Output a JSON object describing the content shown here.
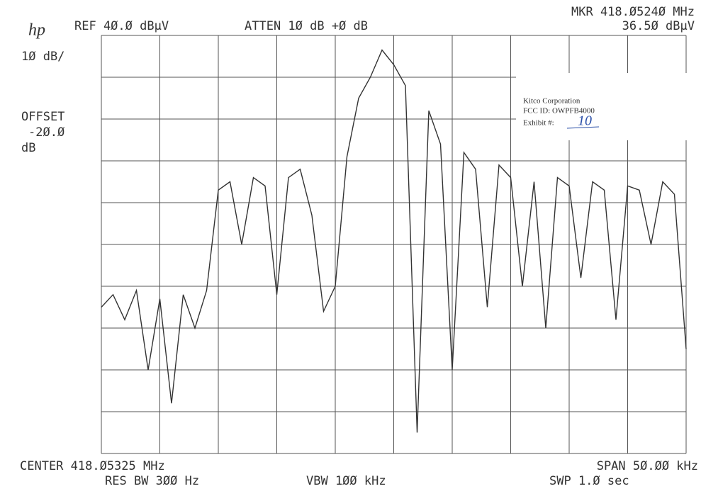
{
  "chart_data": {
    "type": "line",
    "header": {
      "logo": "hp",
      "ref": "REF 4Ø.Ø dBµV",
      "atten": "ATTEN 1Ø dB +Ø dB",
      "marker_freq": "MKR 418.Ø524Ø MHz",
      "marker_level": "36.5Ø dBµV"
    },
    "side": {
      "scale": "1Ø dB/",
      "offset_label": "OFFSET",
      "offset_value": "-2Ø.Ø",
      "offset_unit": "dB"
    },
    "footer": {
      "center": "CENTER 418.Ø5325 MHz",
      "span": "SPAN 5Ø.ØØ kHz",
      "rbw": "RES BW 3ØØ Hz",
      "vbw": "VBW 1ØØ kHz",
      "sweep": "SWP 1.Ø  sec"
    },
    "stamp": {
      "company": "Kitco Corporation",
      "fcc_id": "FCC ID:  OWPFB4000",
      "exhibit_label": "Exhibit #:",
      "exhibit_number": "10"
    },
    "x": [
      418.02825,
      418.02925,
      418.03025,
      418.03125,
      418.03225,
      418.03325,
      418.03425,
      418.03525,
      418.03625,
      418.03725,
      418.03825,
      418.03925,
      418.04025,
      418.04125,
      418.04225,
      418.04325,
      418.04425,
      418.04525,
      418.04625,
      418.04725,
      418.04825,
      418.04925,
      418.05025,
      418.05125,
      418.05225,
      418.05325,
      418.05425,
      418.05525,
      418.05625,
      418.05725,
      418.05825,
      418.05925,
      418.06025,
      418.06125,
      418.06225,
      418.06325,
      418.06425,
      418.06525,
      418.06625,
      418.06725,
      418.06825,
      418.06925,
      418.07025,
      418.07125,
      418.07225,
      418.07325,
      418.07425,
      418.07525,
      418.07625,
      418.07725,
      418.07825
    ],
    "series": [
      {
        "name": "trace",
        "color": "#333333",
        "values": [
          -25,
          -22,
          -28,
          -21,
          -40,
          -23,
          -48,
          -22,
          -30,
          -21,
          3,
          5,
          -10,
          6,
          4,
          -22,
          6,
          8,
          -3,
          -26,
          -20,
          11,
          25,
          30,
          36.5,
          33,
          28,
          -55,
          22,
          14,
          -40,
          12,
          8,
          -25,
          9,
          6,
          -20,
          5,
          -30,
          6,
          4,
          -18,
          5,
          3,
          -28,
          4,
          3,
          -10,
          5,
          2,
          -35
        ]
      }
    ],
    "xlim": [
      418.02825,
      418.07825
    ],
    "xticks": [
      418.02825,
      418.03325,
      418.03825,
      418.04325,
      418.04825,
      418.05325,
      418.05825,
      418.06325,
      418.06825,
      418.07325,
      418.07825
    ],
    "ylim": [
      -60,
      40
    ],
    "yticks": [
      -60,
      -50,
      -40,
      -30,
      -20,
      -10,
      0,
      10,
      20,
      30,
      40
    ],
    "grid": true
  }
}
